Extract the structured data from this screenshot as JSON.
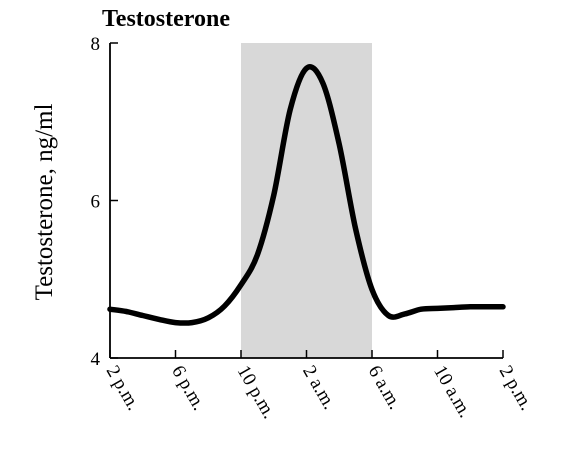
{
  "chart_data": {
    "type": "line",
    "title": "Testosterone",
    "xlabel": "",
    "ylabel": "Testosterone, ng/ml",
    "x_categories": [
      "2 p.m.",
      "6 p.m.",
      "10 p.m.",
      "2 a.m.",
      "6 a.m.",
      "10 a.m.",
      "2 p.m."
    ],
    "ylim": [
      4,
      8
    ],
    "yticks": [
      4,
      6,
      8
    ],
    "shaded_range": [
      "10 p.m.",
      "6 a.m."
    ],
    "shade_color": "#d8d8d8",
    "line_color": "#000000",
    "series": [
      {
        "x": [
          0,
          0.5,
          1,
          1.5,
          2,
          2.5,
          3,
          3.5,
          4,
          4.5,
          5,
          5.5,
          6,
          6.5,
          7,
          7.5,
          8,
          8.5,
          9,
          9.5,
          10,
          10.5,
          11,
          11.5,
          12
        ],
        "values": [
          4.62,
          4.59,
          4.54,
          4.49,
          4.45,
          4.45,
          4.51,
          4.66,
          4.93,
          5.31,
          6.07,
          7.15,
          7.68,
          7.49,
          6.71,
          5.64,
          4.87,
          4.54,
          4.56,
          4.62,
          4.63,
          4.64,
          4.65,
          4.65,
          4.65
        ],
        "x_unit": "hours after 2 p.m."
      }
    ]
  }
}
